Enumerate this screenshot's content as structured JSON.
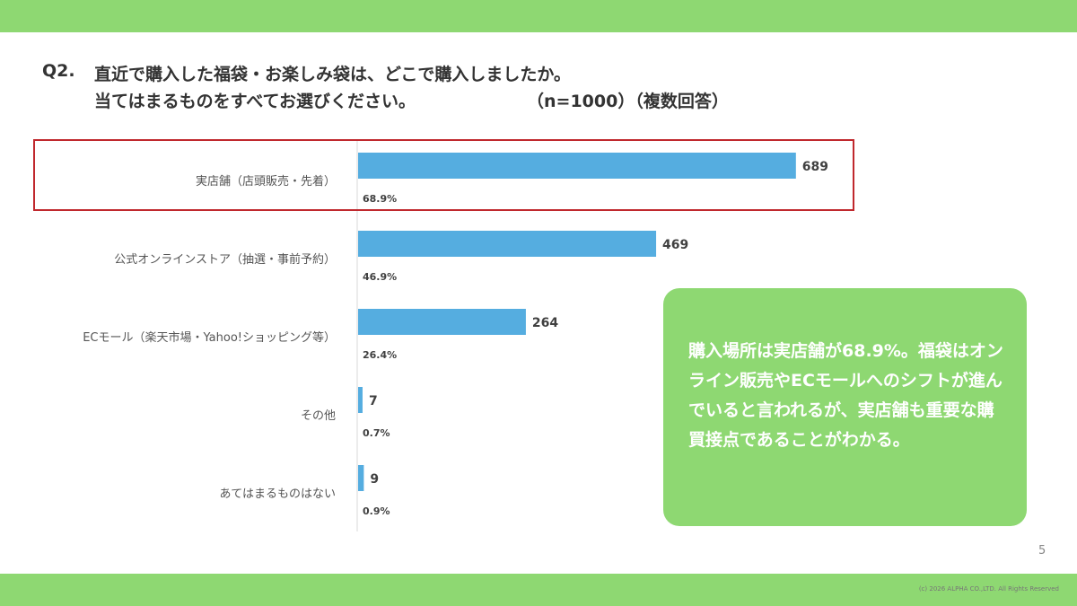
{
  "colors": {
    "band": "#8ed872",
    "bar": "#55ade0",
    "callout_bg": "#8ed872",
    "highlight": "#c0282d"
  },
  "question": {
    "number": "Q2.",
    "line1": "直近で購入した福袋・お楽しみ袋は、どこで購入しましたか。",
    "line2": "当てはまるものをすべてお選びください。",
    "meta": "（n=1000）（複数回答）"
  },
  "chart_data": {
    "type": "bar",
    "orientation": "horizontal",
    "categories": [
      "実店舗（店頭販売・先着）",
      "公式オンラインストア（抽選・事前予約）",
      "ECモール（楽天市場・Yahoo!ショッピング等）",
      "その他",
      "あてはまるものはない"
    ],
    "values": [
      689,
      469,
      264,
      7,
      9
    ],
    "value_labels": [
      "689",
      "469",
      "264",
      "7",
      "9"
    ],
    "percent_labels": [
      "68.9%",
      "46.9%",
      "26.4%",
      "0.7%",
      "0.9%"
    ],
    "xlim": [
      0,
      1000
    ],
    "grid": false,
    "highlighted_category_index": 0
  },
  "callout": {
    "text": "購入場所は実店舗が68.9%。福袋はオンライン販売やECモールへのシフトが進んでいると言われるが、実店舗も重要な購買接点であることがわかる。"
  },
  "footer": {
    "page_number": "5",
    "copyright": "(c) 2026 ALPHA CO.,LTD. All Rights Reserved"
  }
}
